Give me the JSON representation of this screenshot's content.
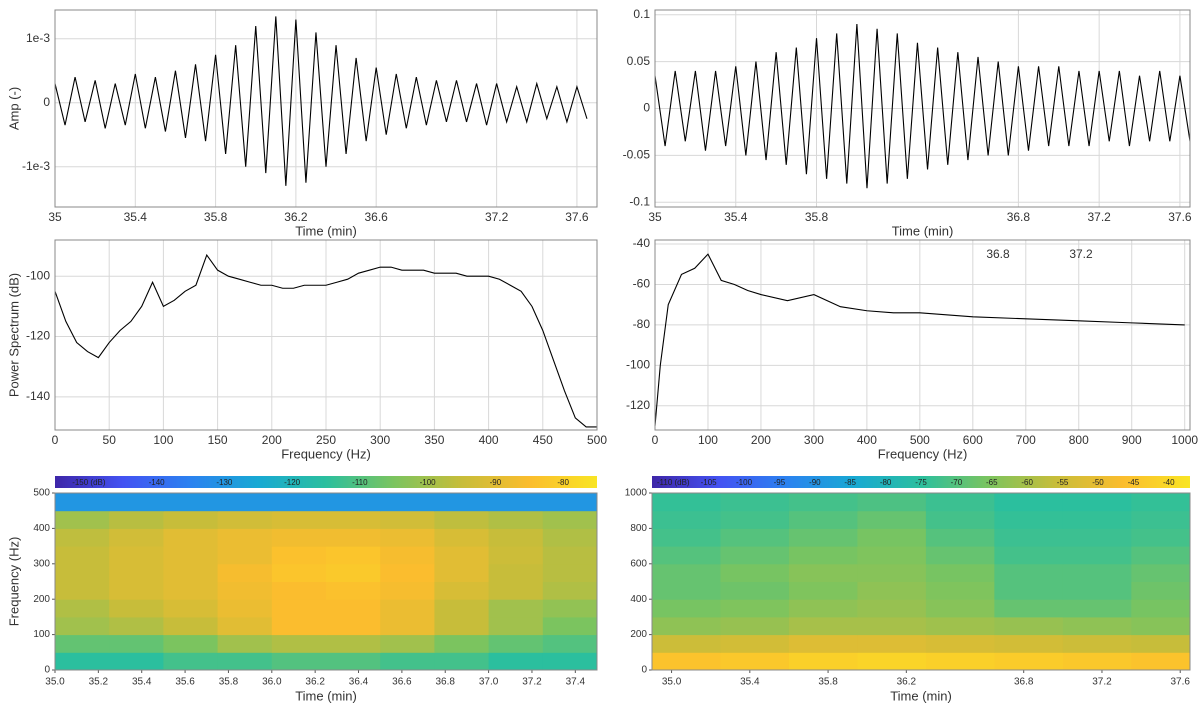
{
  "chart_data": [
    {
      "type": "line",
      "y_label": "Amp (-)",
      "x_label": "Time (min)",
      "color": "#000000",
      "grid": true,
      "xlim": [
        35,
        37.7
      ],
      "ylim": [
        -0.00163,
        0.00145
      ],
      "xticks": [
        35,
        35.4,
        35.8,
        36.2,
        36.6,
        37.2,
        37.6
      ],
      "yticks": [
        {
          "value": 0.001,
          "label": "1e-3"
        },
        0,
        {
          "value": -0.001,
          "label": "-1e-3"
        }
      ],
      "x": [
        35,
        35.05,
        35.1,
        35.15,
        35.2,
        35.25,
        35.3,
        35.35,
        35.4,
        35.45,
        35.5,
        35.55,
        35.6,
        35.65,
        35.7,
        35.75,
        35.8,
        35.85,
        35.9,
        35.95,
        36,
        36.05,
        36.1,
        36.15,
        36.2,
        36.25,
        36.3,
        36.35,
        36.4,
        36.45,
        36.5,
        36.55,
        36.6,
        36.65,
        36.7,
        36.75,
        36.8,
        36.85,
        36.9,
        36.95,
        37,
        37.05,
        37.1,
        37.15,
        37.2,
        37.25,
        37.3,
        37.35,
        37.4,
        37.45,
        37.5,
        37.55,
        37.6,
        37.65
      ],
      "values": [
        0.0003,
        -0.00035,
        0.0004,
        -0.0003,
        0.00035,
        -0.0004,
        0.0003,
        -0.00035,
        0.00045,
        -0.0004,
        0.0004,
        -0.00045,
        0.0005,
        -0.00055,
        0.0006,
        -0.0006,
        0.00075,
        -0.0008,
        0.0009,
        -0.001,
        0.0012,
        -0.0011,
        0.00135,
        -0.0013,
        0.0013,
        -0.00125,
        0.0011,
        -0.001,
        0.0009,
        -0.0008,
        0.0007,
        -0.0006,
        0.00055,
        -0.0005,
        0.00045,
        -0.0004,
        0.0004,
        -0.00035,
        0.00035,
        -0.0003,
        0.00035,
        -0.0003,
        0.0003,
        -0.00035,
        0.0003,
        -0.0003,
        0.00025,
        -0.0003,
        0.0003,
        -0.00025,
        0.00025,
        -0.0003,
        0.00025,
        -0.00025
      ]
    },
    {
      "type": "line",
      "x_label": "Time (min)",
      "color": "#000000",
      "grid": true,
      "xlim": [
        35,
        37.65
      ],
      "ylim": [
        -0.105,
        0.105
      ],
      "xticks": [
        35,
        35.4,
        35.8,
        36.8,
        37.2,
        37.6
      ],
      "yticks": [
        0.1,
        0.05,
        0,
        -0.05,
        -0.1
      ],
      "x": [
        35,
        35.05,
        35.1,
        35.15,
        35.2,
        35.25,
        35.3,
        35.35,
        35.4,
        35.45,
        35.5,
        35.55,
        35.6,
        35.65,
        35.7,
        35.75,
        35.8,
        35.85,
        35.9,
        35.95,
        36,
        36.05,
        36.1,
        36.15,
        36.2,
        36.25,
        36.3,
        36.35,
        36.4,
        36.45,
        36.5,
        36.55,
        36.6,
        36.65,
        36.7,
        36.75,
        36.8,
        36.85,
        36.9,
        36.95,
        37,
        37.05,
        37.1,
        37.15,
        37.2,
        37.25,
        37.3,
        37.35,
        37.4,
        37.45,
        37.5,
        37.55,
        37.6,
        37.65
      ],
      "values": [
        0.035,
        -0.04,
        0.04,
        -0.035,
        0.04,
        -0.045,
        0.04,
        -0.04,
        0.045,
        -0.05,
        0.05,
        -0.055,
        0.06,
        -0.06,
        0.065,
        -0.07,
        0.075,
        -0.075,
        0.08,
        -0.08,
        0.09,
        -0.085,
        0.085,
        -0.08,
        0.08,
        -0.075,
        0.07,
        -0.065,
        0.065,
        -0.06,
        0.06,
        -0.055,
        0.055,
        -0.05,
        0.05,
        -0.05,
        0.045,
        -0.045,
        0.045,
        -0.04,
        0.045,
        -0.04,
        0.04,
        -0.04,
        0.04,
        -0.035,
        0.04,
        -0.04,
        0.035,
        -0.035,
        0.04,
        -0.035,
        0.035,
        -0.035
      ]
    },
    {
      "type": "line",
      "y_label": "Power Spectrum (dB)",
      "x_label": "Frequency (Hz)",
      "color": "#000000",
      "grid": true,
      "xlim": [
        0,
        500
      ],
      "ylim": [
        -151,
        -88
      ],
      "xticks": [
        0,
        50,
        100,
        150,
        200,
        250,
        300,
        350,
        400,
        450,
        500
      ],
      "yticks": [
        -100,
        -120,
        -140
      ],
      "x": [
        0,
        10,
        20,
        30,
        40,
        50,
        60,
        70,
        80,
        90,
        100,
        110,
        120,
        130,
        140,
        150,
        160,
        170,
        180,
        190,
        200,
        210,
        220,
        230,
        240,
        250,
        260,
        270,
        280,
        290,
        300,
        310,
        320,
        330,
        340,
        350,
        360,
        370,
        380,
        390,
        400,
        410,
        420,
        430,
        440,
        450,
        460,
        470,
        480,
        490,
        500
      ],
      "values": [
        -105,
        -115,
        -122,
        -125,
        -127,
        -122,
        -118,
        -115,
        -110,
        -102,
        -110,
        -108,
        -105,
        -103,
        -93,
        -98,
        -100,
        -101,
        -102,
        -103,
        -103,
        -104,
        -104,
        -103,
        -103,
        -103,
        -102,
        -101,
        -99,
        -98,
        -97,
        -97,
        -98,
        -98,
        -98,
        -99,
        -99,
        -99,
        -100,
        -100,
        -100,
        -101,
        -103,
        -105,
        -110,
        -118,
        -128,
        -138,
        -147,
        -150,
        -150
      ]
    },
    {
      "type": "line",
      "x_label": "Frequency (Hz)",
      "color": "#000000",
      "grid": true,
      "xlim": [
        0,
        1010
      ],
      "ylim": [
        -132,
        -38
      ],
      "xticks": [
        0,
        100,
        200,
        300,
        400,
        500,
        600,
        700,
        800,
        900,
        1000
      ],
      "yticks": [
        -40,
        -60,
        -80,
        -100,
        -120
      ],
      "annotations": [
        "36.8",
        "37.2"
      ],
      "x": [
        0,
        10,
        25,
        50,
        75,
        100,
        125,
        150,
        175,
        200,
        250,
        300,
        350,
        400,
        450,
        500,
        600,
        700,
        800,
        900,
        1000
      ],
      "values": [
        -130,
        -100,
        -70,
        -55,
        -52,
        -45,
        -58,
        -60,
        -63,
        -65,
        -68,
        -65,
        -71,
        -73,
        -74,
        -74,
        -76,
        -77,
        -78,
        -79,
        -80
      ]
    },
    {
      "type": "heatmap",
      "y_label": "Frequency (Hz)",
      "x_label": "Time (min)",
      "colormap": [
        "#3e26a8",
        "#4352f2",
        "#2b82f0",
        "#18a9d3",
        "#2bbf9e",
        "#7bc45f",
        "#c7bd3a",
        "#fbbd2e",
        "#f9e524"
      ],
      "zlim": [
        -155,
        -75
      ],
      "zticks": [
        {
          "value": -150,
          "label": "-150 (dB)"
        },
        -140,
        -130,
        -120,
        -110,
        -100,
        -90,
        -80
      ],
      "xlim": [
        35,
        37.5
      ],
      "ylim": [
        0,
        500
      ],
      "xticks": [
        {
          "value": 35,
          "label": "35.0"
        },
        35.2,
        35.4,
        35.6,
        35.8,
        {
          "value": 36,
          "label": "36.0"
        },
        36.2,
        36.4,
        36.6,
        36.8,
        {
          "value": 37,
          "label": "37.0"
        },
        37.2,
        37.4
      ],
      "yticks": [
        0,
        100,
        200,
        300,
        400,
        500
      ],
      "x_edges": [
        35,
        35.25,
        35.5,
        35.75,
        36,
        36.25,
        36.5,
        36.75,
        37,
        37.25,
        37.5
      ],
      "y_edges": [
        0,
        50,
        100,
        150,
        200,
        250,
        300,
        350,
        400,
        450,
        500
      ],
      "z": [
        [
          -115,
          -115,
          -112,
          -112,
          -110,
          -110,
          -112,
          -112,
          -115,
          -115
        ],
        [
          -108,
          -108,
          -105,
          -100,
          -98,
          -98,
          -100,
          -105,
          -108,
          -110
        ],
        [
          -100,
          -98,
          -95,
          -90,
          -85,
          -85,
          -88,
          -95,
          -100,
          -105
        ],
        [
          -98,
          -95,
          -92,
          -88,
          -85,
          -85,
          -88,
          -95,
          -100,
          -102
        ],
        [
          -95,
          -92,
          -90,
          -87,
          -85,
          -84,
          -86,
          -92,
          -95,
          -98
        ],
        [
          -95,
          -92,
          -90,
          -86,
          -83,
          -82,
          -85,
          -90,
          -95,
          -97
        ],
        [
          -95,
          -92,
          -90,
          -88,
          -84,
          -83,
          -86,
          -90,
          -94,
          -97
        ],
        [
          -96,
          -93,
          -90,
          -88,
          -87,
          -87,
          -88,
          -92,
          -95,
          -98
        ],
        [
          -100,
          -97,
          -95,
          -93,
          -92,
          -92,
          -93,
          -96,
          -98,
          -100
        ],
        [
          -130,
          -130,
          -130,
          -130,
          -130,
          -130,
          -130,
          -130,
          -130,
          -130
        ]
      ]
    },
    {
      "type": "heatmap",
      "x_label": "Time (min)",
      "colormap": [
        "#3e26a8",
        "#4352f2",
        "#2b82f0",
        "#18a9d3",
        "#2bbf9e",
        "#7bc45f",
        "#c7bd3a",
        "#fbbd2e",
        "#f9e524"
      ],
      "zlim": [
        -113,
        -37
      ],
      "zticks": [
        {
          "value": -110,
          "label": "-110 (dB)"
        },
        -105,
        -100,
        -95,
        -90,
        -85,
        -80,
        -75,
        -70,
        -65,
        -60,
        -55,
        -50,
        -45,
        -40
      ],
      "xlim": [
        34.9,
        37.65
      ],
      "ylim": [
        0,
        1000
      ],
      "xticks": [
        {
          "value": 35,
          "label": "35.0"
        },
        35.4,
        35.8,
        36.2,
        36.8,
        37.2,
        37.6
      ],
      "yticks": [
        0,
        200,
        400,
        600,
        800,
        1000
      ],
      "x_edges": [
        34.9,
        35.25,
        35.6,
        35.95,
        36.3,
        36.65,
        37,
        37.35,
        37.65
      ],
      "y_edges": [
        0,
        100,
        200,
        300,
        400,
        500,
        600,
        700,
        800,
        900,
        1000
      ],
      "z": [
        [
          -45,
          -44,
          -42,
          -41,
          -42,
          -43,
          -44,
          -45
        ],
        [
          -55,
          -54,
          -52,
          -52,
          -53,
          -54,
          -55,
          -56
        ],
        [
          -63,
          -62,
          -60,
          -60,
          -61,
          -62,
          -63,
          -64
        ],
        [
          -66,
          -65,
          -63,
          -62,
          -64,
          -68,
          -68,
          -66
        ],
        [
          -68,
          -67,
          -65,
          -63,
          -65,
          -70,
          -70,
          -67
        ],
        [
          -68,
          -66,
          -64,
          -64,
          -66,
          -70,
          -70,
          -68
        ],
        [
          -70,
          -68,
          -66,
          -65,
          -68,
          -72,
          -72,
          -70
        ],
        [
          -72,
          -70,
          -68,
          -66,
          -70,
          -73,
          -73,
          -72
        ],
        [
          -73,
          -72,
          -70,
          -68,
          -72,
          -74,
          -74,
          -73
        ],
        [
          -74,
          -73,
          -72,
          -71,
          -73,
          -75,
          -75,
          -74
        ]
      ]
    }
  ]
}
